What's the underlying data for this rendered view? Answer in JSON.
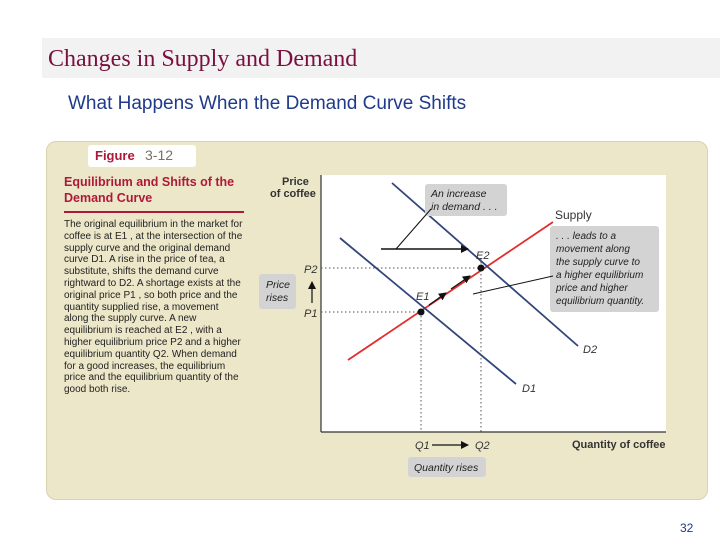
{
  "slide": {
    "title": "Changes in Supply and Demand",
    "subtitle": "What Happens When the Demand Curve Shifts",
    "page_number": "32"
  },
  "figure": {
    "label": "Figure",
    "number": "3-12",
    "heading": "Equilibrium and Shifts of the Demand Curve",
    "body": "The original equilibrium in the market for coffee is at E1 , at the intersection of the supply curve and the original demand curve D1. A rise in the price of tea, a substitute, shifts the demand curve rightward to D2. A shortage exists at the original price P1 , so both price and the quantity supplied rise, a movement along the supply curve. A new equilibrium is reached at E2 , with a higher equilibrium price P2 and a higher equilibrium quantity Q2. When demand for a good increases, the equilibrium price and the equilibrium quantity of the good both rise."
  },
  "diagram": {
    "y_axis_label_line1": "Price",
    "y_axis_label_line2": "of coffee",
    "x_axis_label": "Quantity of coffee",
    "supply_label": "Supply",
    "demand1_label": "D1",
    "demand2_label": "D2",
    "eq1_label": "E1",
    "eq2_label": "E2",
    "p1_label": "P1",
    "p2_label": "P2",
    "q1_label": "Q1",
    "q2_label": "Q2",
    "price_rises_line1": "Price",
    "price_rises_line2": "rises",
    "quantity_rises": "Quantity rises",
    "callout_demand_line1": "An increase",
    "callout_demand_line2": "in demand . . .",
    "callout_supply_lines": [
      ". . . leads to a",
      "movement along",
      "the supply curve to",
      "a higher equilibrium",
      "price and higher",
      "equilibrium quantity."
    ],
    "colors": {
      "supply": "#e32d2d",
      "demand": "#33457a",
      "callout_bg": "#d3d3d3",
      "point": "#111111"
    }
  }
}
